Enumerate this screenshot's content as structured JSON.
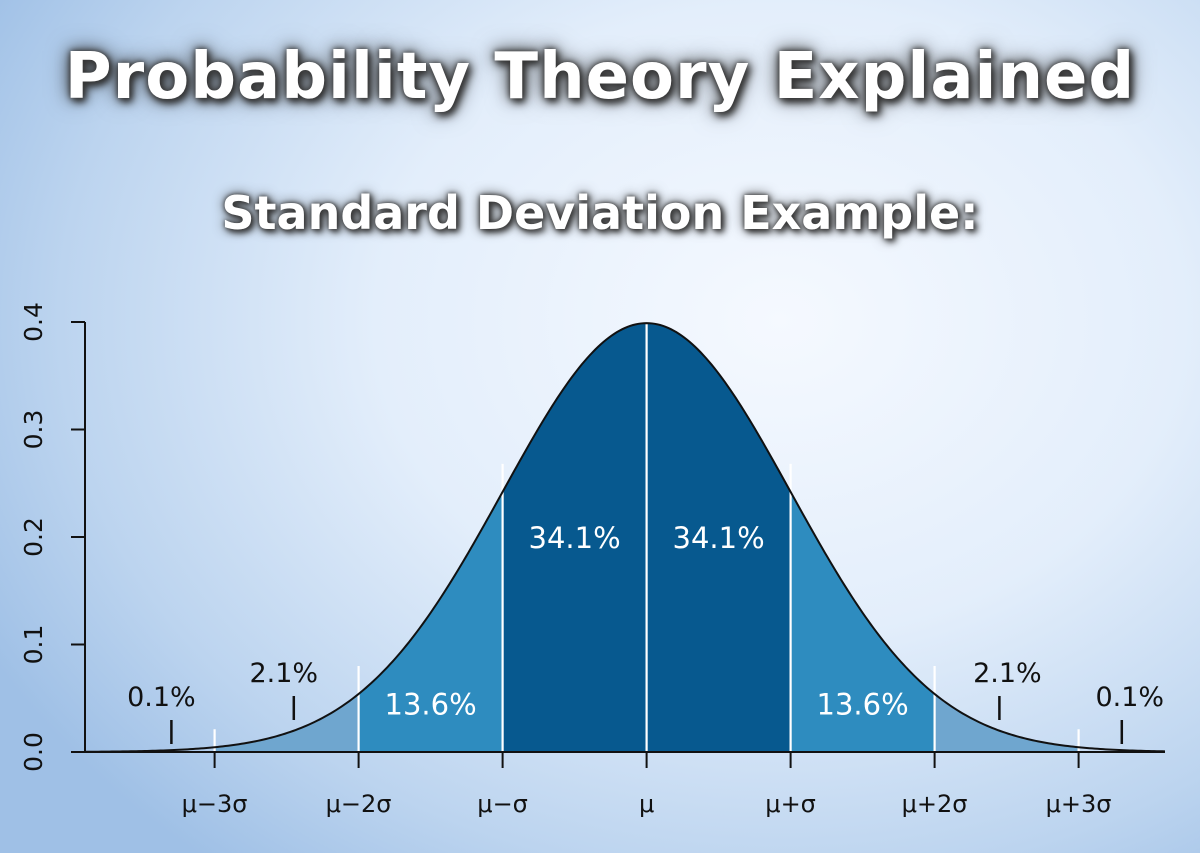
{
  "title": "Probability Theory Explained",
  "subtitle": "Standard Deviation Example:",
  "chart_data": {
    "type": "area",
    "distribution": "normal",
    "mean": 0,
    "sd": 1,
    "xlim": [
      -3.9,
      3.6
    ],
    "ylim": [
      0,
      0.4
    ],
    "y_ticks": [
      0.0,
      0.1,
      0.2,
      0.3,
      0.4
    ],
    "y_tick_labels": [
      "0.0",
      "0.1",
      "0.2",
      "0.3",
      "0.4"
    ],
    "x_ticks": [
      -3,
      -2,
      -1,
      0,
      1,
      2,
      3
    ],
    "x_tick_labels": [
      "μ−3σ",
      "μ−2σ",
      "μ−σ",
      "μ",
      "μ+σ",
      "μ+2σ",
      "μ+3σ"
    ],
    "regions": [
      {
        "from": -2,
        "to": -1,
        "percent": "13.6%",
        "color": "#2e8cbf"
      },
      {
        "from": -1,
        "to": 0,
        "percent": "34.1%",
        "color": "#07598f"
      },
      {
        "from": 0,
        "to": 1,
        "percent": "34.1%",
        "color": "#07598f"
      },
      {
        "from": 1,
        "to": 2,
        "percent": "13.6%",
        "color": "#2e8cbf"
      }
    ],
    "tail_regions": [
      {
        "from": -3,
        "to": -2,
        "color": "#6fa6cf"
      },
      {
        "from": 2,
        "to": 3,
        "color": "#6fa6cf"
      }
    ],
    "outer_labels": [
      {
        "text": "0.1%",
        "x": -3.3
      },
      {
        "text": "2.1%",
        "x": -2.45
      },
      {
        "text": "2.1%",
        "x": 2.45
      },
      {
        "text": "0.1%",
        "x": 3.3
      }
    ],
    "grid": false
  }
}
